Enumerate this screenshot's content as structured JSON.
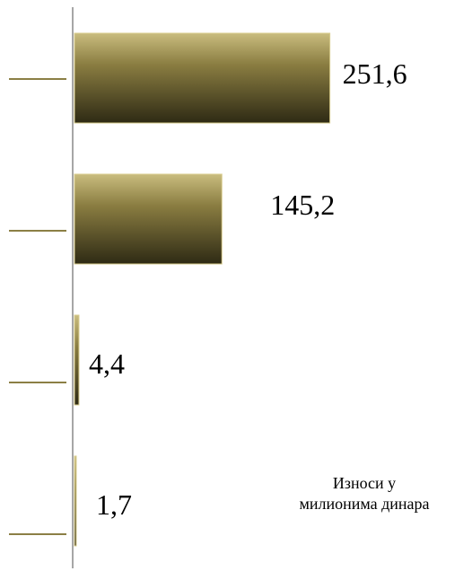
{
  "chart_data": {
    "type": "bar",
    "orientation": "horizontal",
    "title": "",
    "xlabel": "",
    "ylabel": "",
    "categories": [
      "",
      "",
      "",
      ""
    ],
    "series": [
      {
        "values": [
          251.6,
          145.2,
          4.4,
          1.7
        ],
        "labels": [
          "251,6",
          "145,2",
          "4,4",
          "1,7"
        ]
      }
    ],
    "xlim": [
      0,
      320
    ],
    "grid": false,
    "legend": "none",
    "annotation": {
      "line1": "Износи у",
      "line2": "милионима динара"
    },
    "colors": {
      "bar_light": "#c9bc7e",
      "bar_mid": "#8a7d41",
      "bar_dark": "#2e2a14",
      "bar_edge": "#d8cc8e",
      "axis": "#888888",
      "tick": "#8b7f45"
    }
  }
}
